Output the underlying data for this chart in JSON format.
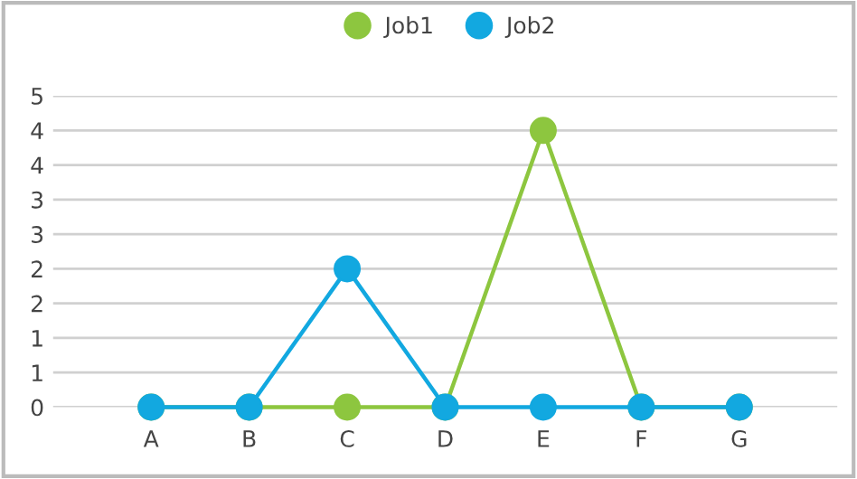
{
  "chart_data": {
    "type": "line",
    "categories": [
      "A",
      "B",
      "C",
      "D",
      "E",
      "F",
      "G"
    ],
    "series": [
      {
        "name": "Job1",
        "color": "#8dc63f",
        "values": [
          0,
          0,
          0,
          0,
          4,
          0,
          0
        ]
      },
      {
        "name": "Job2",
        "color": "#12a8e0",
        "values": [
          0,
          0,
          2,
          0,
          0,
          0,
          0
        ]
      }
    ],
    "ylim": [
      0,
      4.5
    ],
    "yticks": [
      0,
      {
        "value": 0.5,
        "label": "1"
      },
      1,
      {
        "value": 1.5,
        "label": "2"
      },
      2,
      {
        "value": 2.5,
        "label": "3"
      },
      3,
      {
        "value": 3.5,
        "label": "4"
      },
      4,
      {
        "value": 4.5,
        "label": "5"
      }
    ],
    "grid": "y",
    "legend": "top",
    "marker": "circle",
    "line_style": "solid"
  }
}
